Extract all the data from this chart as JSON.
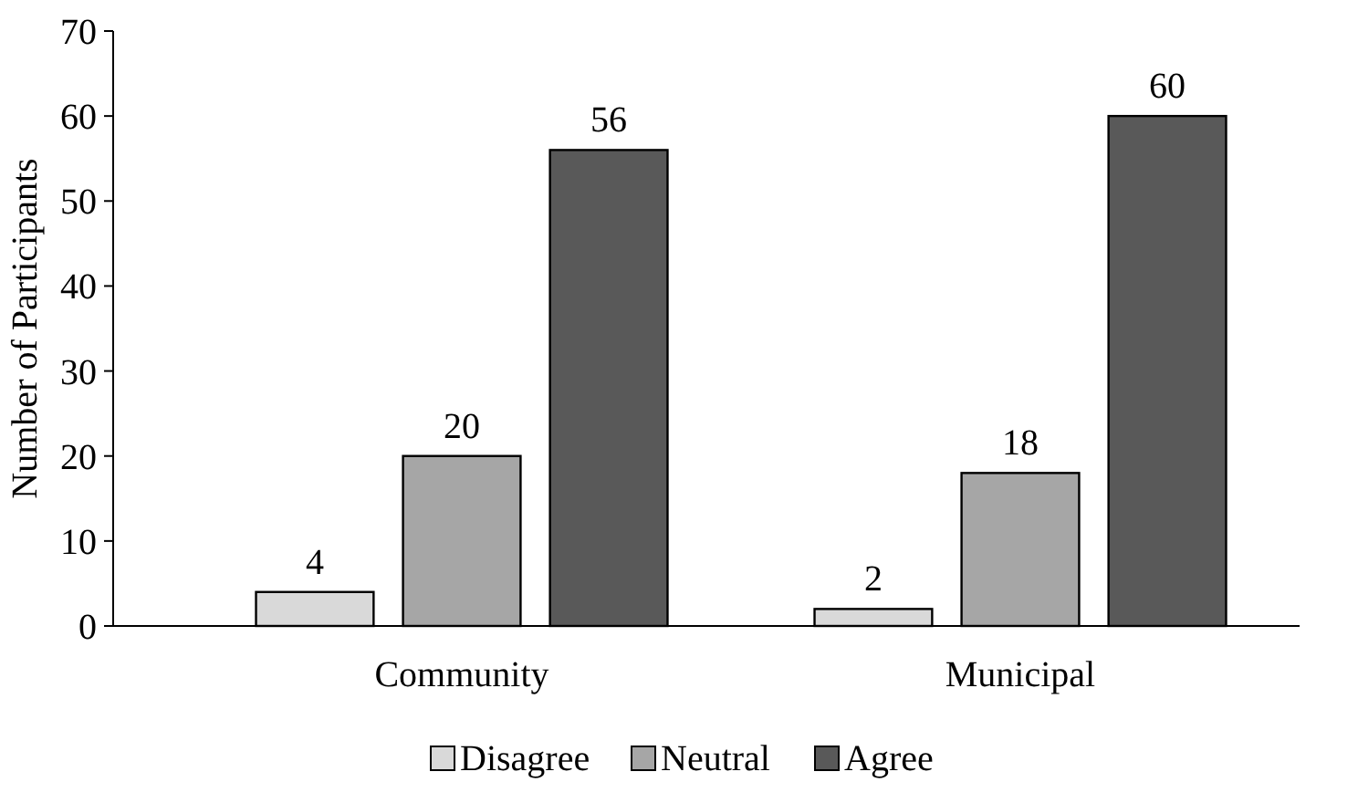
{
  "chart_data": {
    "type": "bar",
    "ylabel": "Number of Participants",
    "categories": [
      "Community",
      "Municipal"
    ],
    "series": [
      {
        "name": "Disagree",
        "color": "#d9d9d9",
        "values": [
          4,
          2
        ]
      },
      {
        "name": "Neutral",
        "color": "#a6a6a6",
        "values": [
          20,
          18
        ]
      },
      {
        "name": "Agree",
        "color": "#595959",
        "values": [
          56,
          60
        ]
      }
    ],
    "ylim": [
      0,
      70
    ],
    "yticks": [
      0,
      10,
      20,
      30,
      40,
      50,
      60,
      70
    ],
    "data_labels": true,
    "legend": "bottom",
    "grid": false
  }
}
